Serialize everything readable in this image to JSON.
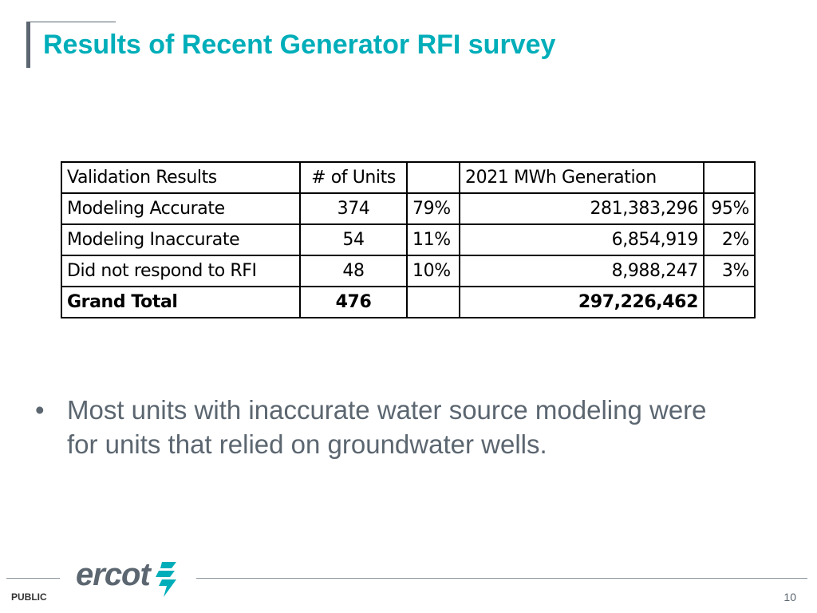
{
  "slide": {
    "title": "Results of Recent Generator RFI survey",
    "page_number": "10",
    "classification": "PUBLIC",
    "logo_text": "ercot",
    "accent_color": "#00aeb9",
    "text_color": "#5b6670"
  },
  "table": {
    "header": [
      "Validation Results",
      "# of Units",
      "",
      "2021 MWh Generation",
      ""
    ],
    "rows": [
      [
        "Modeling Accurate",
        "374",
        "79%",
        "281,383,296",
        "95%"
      ],
      [
        "Modeling Inaccurate",
        "54",
        "11%",
        "6,854,919",
        "2%"
      ],
      [
        "Did not respond to RFI",
        "48",
        "10%",
        "8,988,247",
        "3%"
      ]
    ],
    "total": [
      "Grand Total",
      "476",
      "",
      "297,226,462",
      ""
    ]
  },
  "bullets": [
    "Most units with inaccurate water source modeling were for units that relied on groundwater wells."
  ]
}
